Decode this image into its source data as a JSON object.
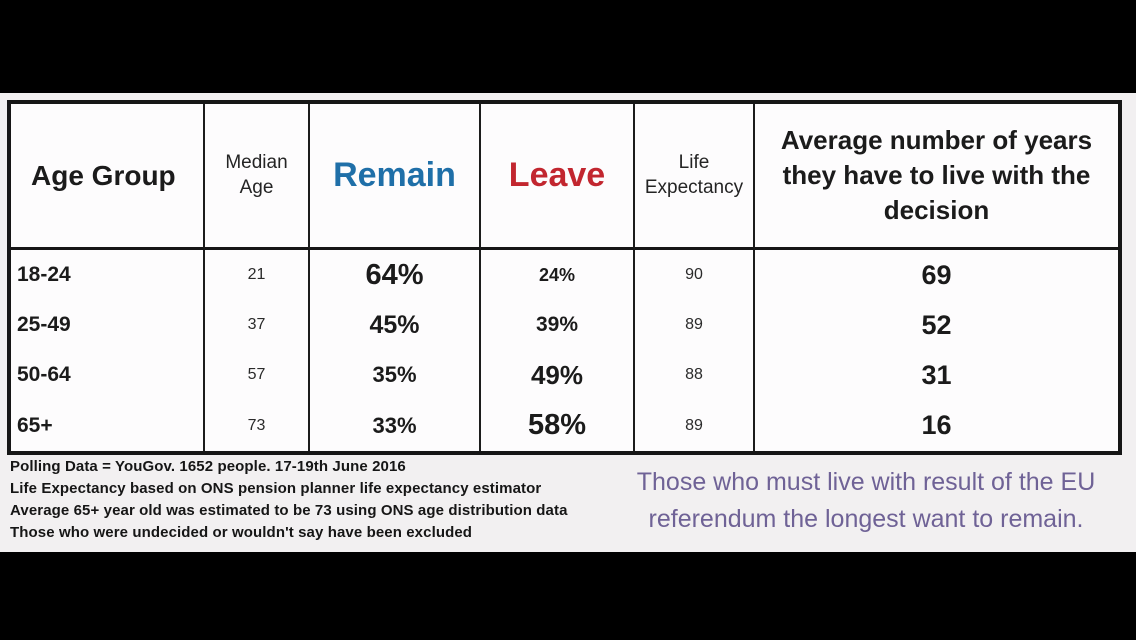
{
  "colors": {
    "remain_blue": "#1f6fa8",
    "leave_red": "#c2262f",
    "caption_purple": "#6f6296",
    "text_black": "#1b1b1b",
    "letterbox_black": "#000000",
    "panel_bg": "#f2f0f1",
    "cell_bg": "#fdfcfd"
  },
  "table": {
    "headers": {
      "age_group": "Age Group",
      "median_age": "Median Age",
      "remain": "Remain",
      "leave": "Leave",
      "life_expectancy": "Life Expectancy",
      "avg_years": "Average number of years they have to live with the decision"
    },
    "rows": [
      {
        "age_group": "18-24",
        "median_age": "21",
        "remain": "64%",
        "leave": "24%",
        "life_expectancy": "90",
        "avg_years": "69"
      },
      {
        "age_group": "25-49",
        "median_age": "37",
        "remain": "45%",
        "leave": "39%",
        "life_expectancy": "89",
        "avg_years": "52"
      },
      {
        "age_group": "50-64",
        "median_age": "57",
        "remain": "35%",
        "leave": "49%",
        "life_expectancy": "88",
        "avg_years": "31"
      },
      {
        "age_group": "65+",
        "median_age": "73",
        "remain": "33%",
        "leave": "58%",
        "life_expectancy": "89",
        "avg_years": "16"
      }
    ]
  },
  "footnotes": [
    "Polling Data = YouGov. 1652 people. 17-19th June 2016",
    "Life Expectancy based on ONS pension planner life expectancy estimator",
    "Average 65+ year old was estimated to be 73 using ONS age distribution data",
    "Those who were undecided or wouldn't say have been excluded"
  ],
  "caption": "Those who must live with result of the EU referendum the longest want to remain.",
  "chart_data": {
    "type": "table",
    "title": "",
    "columns": [
      "Age Group",
      "Median Age",
      "Remain",
      "Leave",
      "Life Expectancy",
      "Average number of years they have to live with the decision"
    ],
    "rows": [
      [
        "18-24",
        21,
        "64%",
        "24%",
        90,
        69
      ],
      [
        "25-49",
        37,
        "45%",
        "39%",
        89,
        52
      ],
      [
        "50-64",
        57,
        "35%",
        "49%",
        88,
        31
      ],
      [
        "65+",
        73,
        "33%",
        "58%",
        89,
        16
      ]
    ],
    "emphasis": "The winning vote share in each row is rendered in a larger font",
    "notes": [
      "Polling Data = YouGov. 1652 people. 17-19th June 2016",
      "Life Expectancy based on ONS pension planner life expectancy estimator",
      "Average 65+ year old was estimated to be 73 using ONS age distribution data",
      "Those who were undecided or wouldn't say have been excluded"
    ],
    "caption": "Those who must live with result of the EU referendum the longest want to remain."
  }
}
